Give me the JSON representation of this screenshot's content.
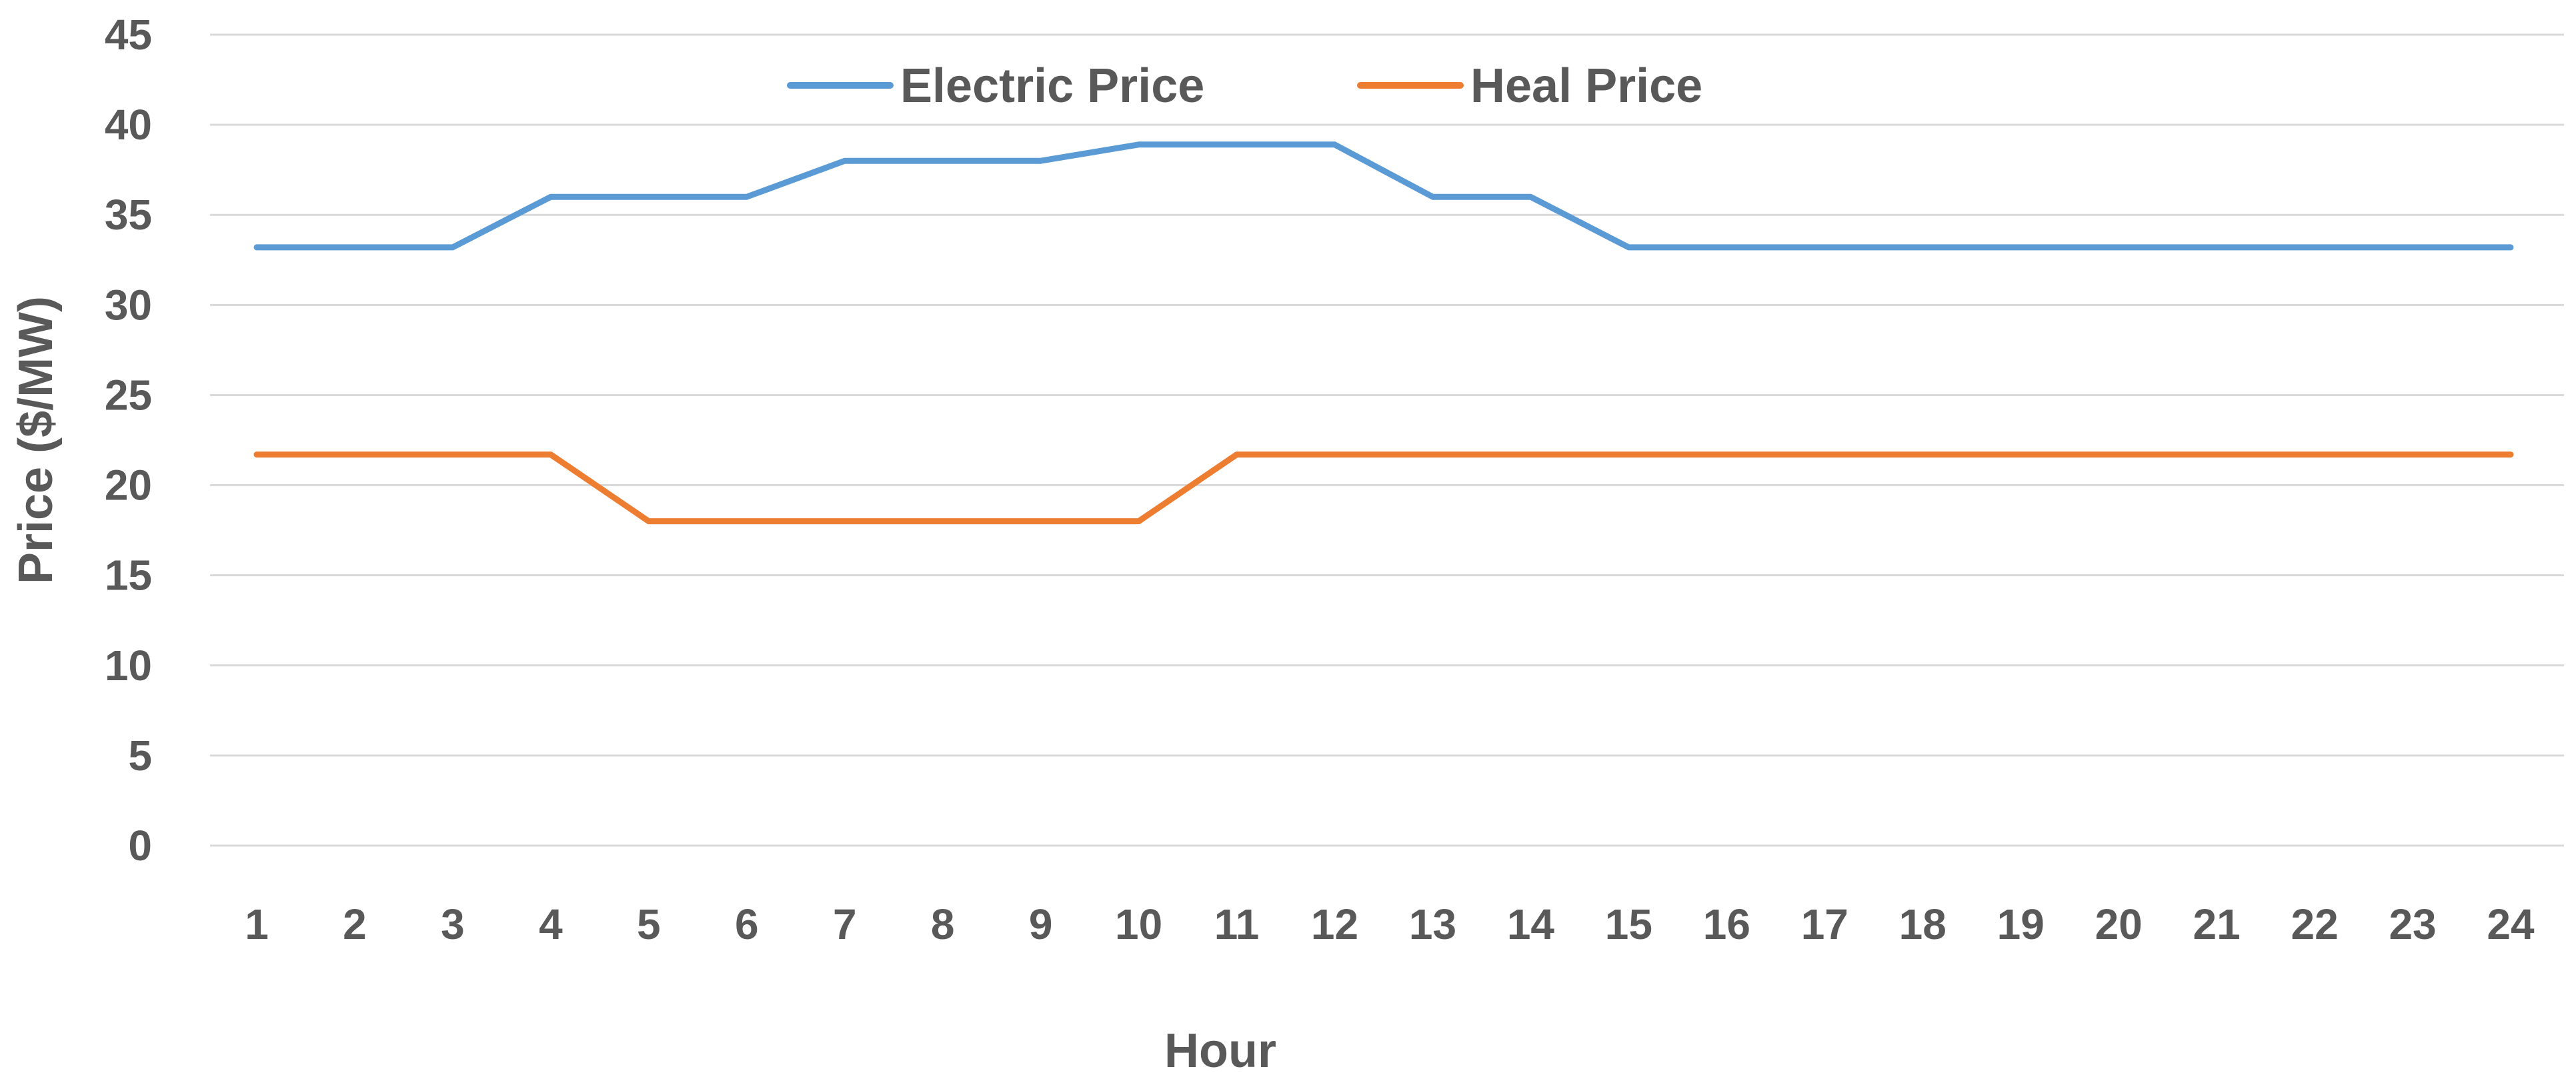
{
  "chart_data": {
    "type": "line",
    "title": "",
    "xlabel": "Hour",
    "ylabel": "Price ($/MW)",
    "categories": [
      "1",
      "2",
      "3",
      "4",
      "5",
      "6",
      "7",
      "8",
      "9",
      "10",
      "11",
      "12",
      "13",
      "14",
      "15",
      "16",
      "17",
      "18",
      "19",
      "20",
      "21",
      "22",
      "23",
      "24"
    ],
    "yticks": [
      "0",
      "5",
      "10",
      "15",
      "20",
      "25",
      "30",
      "35",
      "40",
      "45"
    ],
    "ylim": [
      0,
      45
    ],
    "grid": true,
    "legend_position": "top",
    "series": [
      {
        "name": "Electric Price",
        "color": "#5b9bd5",
        "values": [
          33.2,
          33.2,
          33.2,
          36,
          36,
          36,
          38,
          38,
          38,
          38.9,
          38.9,
          38.9,
          36,
          36,
          33.2,
          33.2,
          33.2,
          33.2,
          33.2,
          33.2,
          33.2,
          33.2,
          33.2,
          33.2
        ]
      },
      {
        "name": "Heal Price",
        "color": "#ed7d31",
        "values": [
          21.7,
          21.7,
          21.7,
          21.7,
          18,
          18,
          18,
          18,
          18,
          18,
          21.7,
          21.7,
          21.7,
          21.7,
          21.7,
          21.7,
          21.7,
          21.7,
          21.7,
          21.7,
          21.7,
          21.7,
          21.7,
          21.7
        ]
      }
    ]
  }
}
